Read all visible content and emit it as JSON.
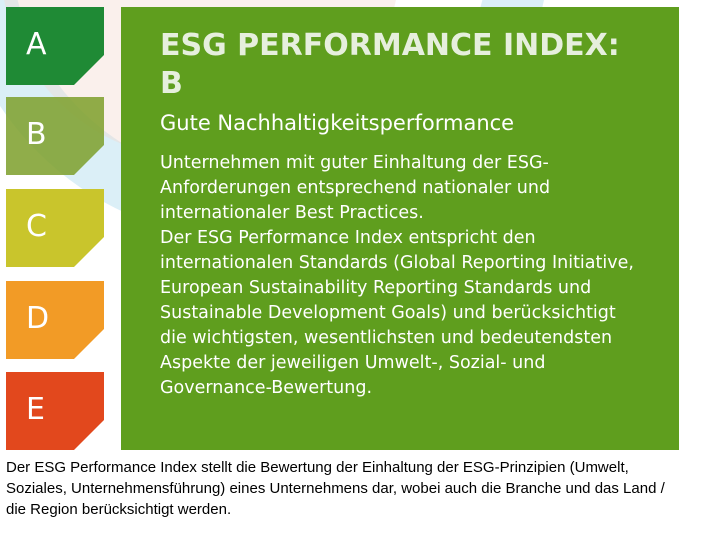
{
  "grades": [
    "A",
    "B",
    "C",
    "D",
    "E"
  ],
  "panel": {
    "title": "ESG PERFORMANCE INDEX: B",
    "subtitle": "Gute Nachhaltigkeitsperformance",
    "paragraphs": [
      "Unternehmen mit guter Einhaltung der ESG-Anforderungen entsprechend nationaler und internationaler Best Practices.",
      "Der ESG Performance Index entspricht den internationalen Standards (Global Reporting Initiative, European Sustainability Reporting Standards und Sustainable Development Goals) und berücksichtigt die wichtigsten, wesentlichsten und bedeutendsten Aspekte der jeweiligen Umwelt-, Sozial- und Governance-Bewertung."
    ]
  },
  "footer": "Der ESG Performance Index stellt die Bewertung der Einhaltung der ESG-Prinzipien (Umwelt, Soziales, Unternehmensführung) eines Unternehmens dar, wobei auch die Branche und das Land / die Region berücksichtigt werden."
}
